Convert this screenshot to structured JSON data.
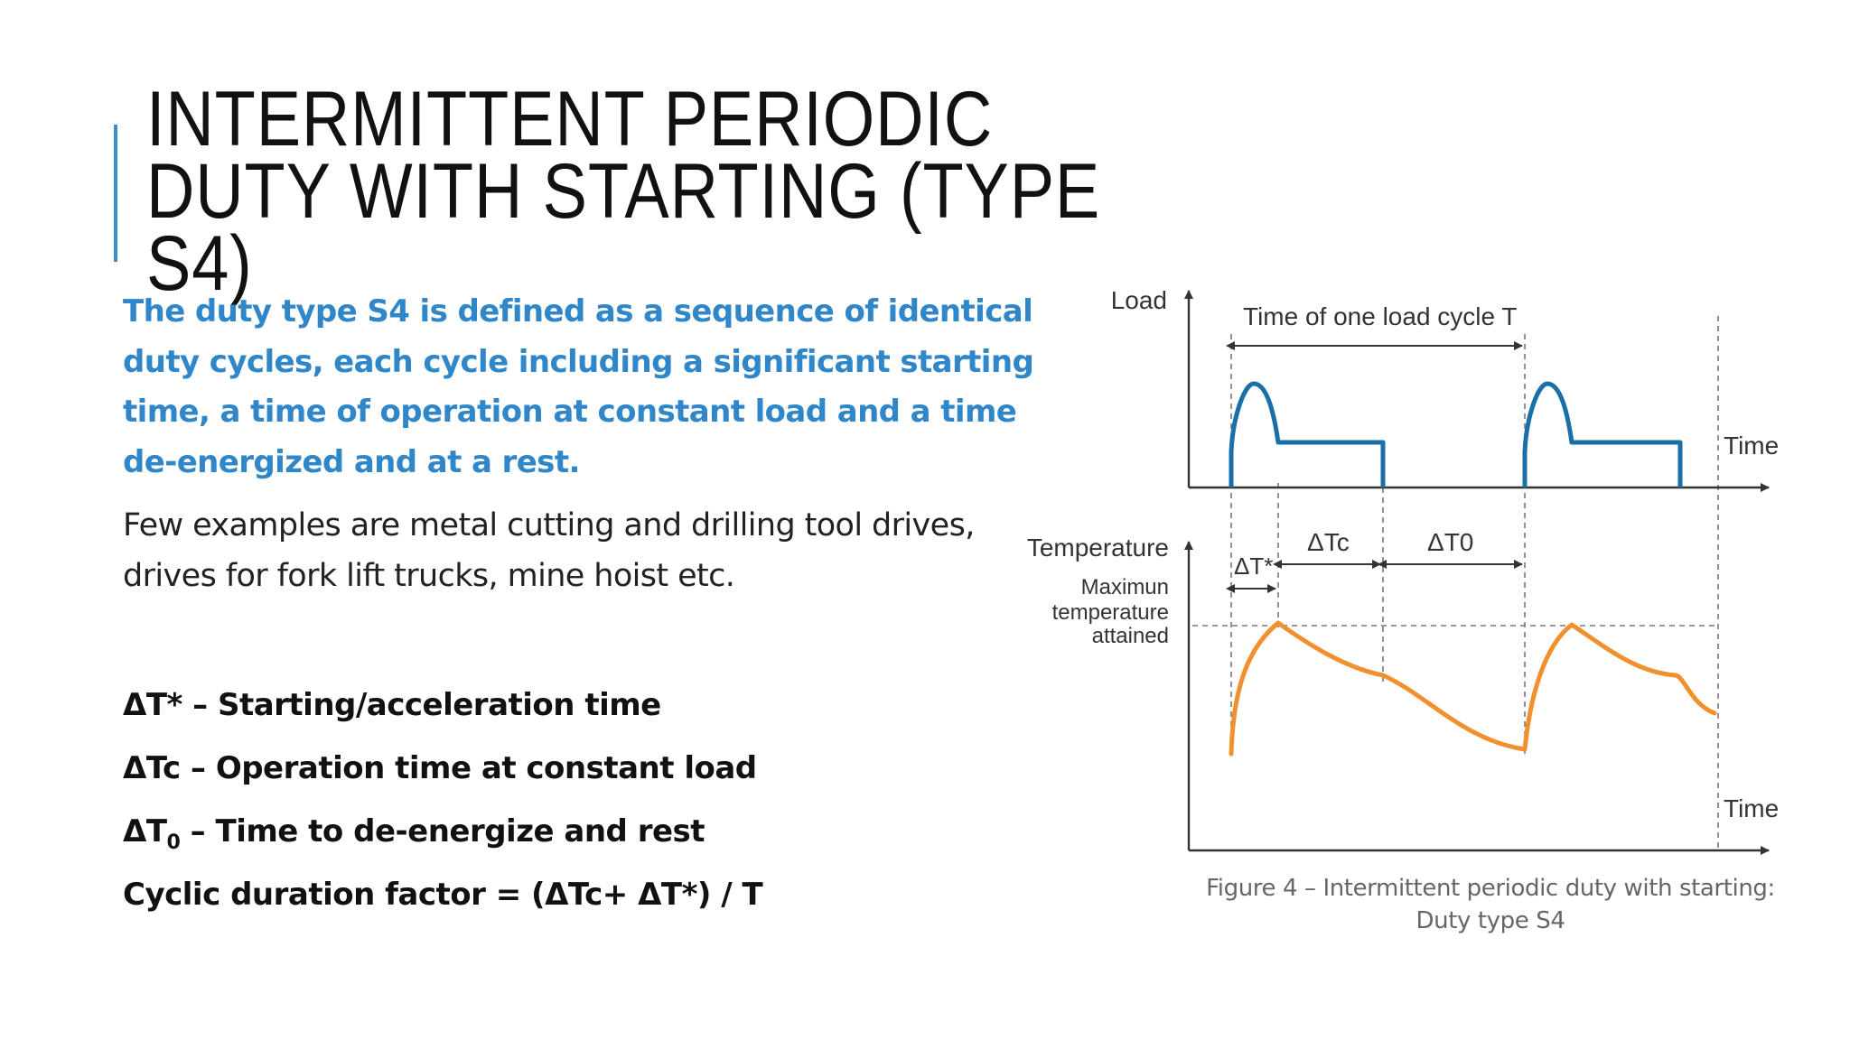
{
  "title": {
    "line1": "INTERMITTENT PERIODIC",
    "line2": "DUTY WITH STARTING (TYPE",
    "line3": "S4)"
  },
  "intro": {
    "line1": "The duty type S4 is defined as a sequence of identical",
    "line2": "duty cycles, each cycle including a significant starting",
    "line3": "time, a time of operation at constant load and a time",
    "line4": "de-energized and at a rest."
  },
  "examples": {
    "line1": "Few examples are metal cutting and drilling tool drives,",
    "line2": "drives for fork lift trucks, mine hoist etc."
  },
  "definitions": {
    "start": "ΔT* – Starting/acceleration time",
    "operation": "ΔTc – Operation time at constant load",
    "rest_symbol": "ΔT",
    "rest_sub": "0",
    "rest_text": " – Time to de-energize and rest",
    "factor": "Cyclic duration factor = (ΔTc+ ΔT*) / T"
  },
  "figure": {
    "load_label": "Load",
    "cycle_label": "Time of one load cycle T",
    "time_label_top": "Time",
    "temperature_label": "Temperature",
    "max_temp_line1": "Maximun",
    "max_temp_line2": "temperature",
    "max_temp_line3": "attained",
    "dt_start": "ΔT*",
    "dt_c": "ΔTc",
    "dt_0": "ΔT0",
    "time_label_bottom": "Time",
    "load_color": "#1a6fa8",
    "temp_color": "#f0902f"
  },
  "caption": {
    "line1": "Figure 4 – Intermittent periodic duty with starting:",
    "line2": "Duty type S4"
  }
}
